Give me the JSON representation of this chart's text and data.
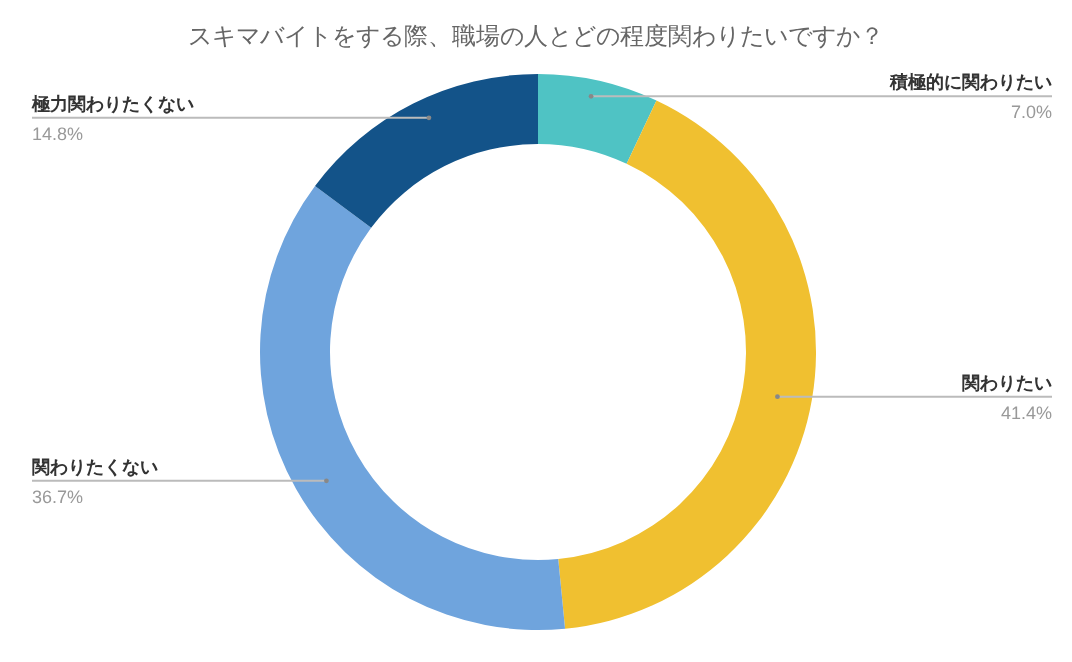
{
  "chart_data": {
    "type": "donut",
    "title": "スキマバイトをする際、職場の人とどの程度関わりたいですか？",
    "categories": [
      "積極的に関わりたい",
      "関わりたい",
      "関わりたくない",
      "極力関わりたくない"
    ],
    "values": [
      7.0,
      41.4,
      36.7,
      14.8
    ],
    "colors": [
      "#4fc3c4",
      "#f0c030",
      "#6fa4dd",
      "#135389"
    ],
    "value_labels": [
      "7.0%",
      "41.4%",
      "36.7%",
      "14.8%"
    ],
    "legend": false
  }
}
